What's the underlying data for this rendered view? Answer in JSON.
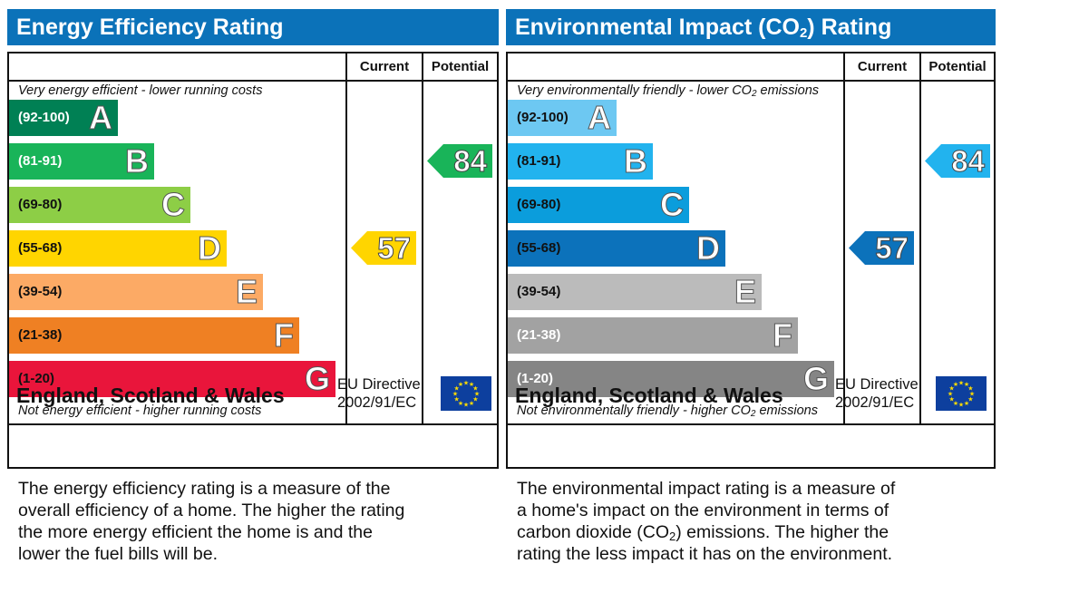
{
  "chart_data": [
    {
      "type": "bar",
      "title": "Energy Efficiency Rating",
      "columns": [
        "Current",
        "Potential"
      ],
      "top_note": "Very energy efficient - lower running costs",
      "bottom_note": "Not energy efficient - higher running costs",
      "bands": [
        {
          "letter": "A",
          "range": "(92-100)",
          "color": "#008054",
          "text_color": "#ffffff"
        },
        {
          "letter": "B",
          "range": "(81-91)",
          "color": "#19b459",
          "text_color": "#ffffff"
        },
        {
          "letter": "C",
          "range": "(69-80)",
          "color": "#8dce46",
          "text_color": "#111111"
        },
        {
          "letter": "D",
          "range": "(55-68)",
          "color": "#ffd500",
          "text_color": "#111111"
        },
        {
          "letter": "E",
          "range": "(39-54)",
          "color": "#fcaa65",
          "text_color": "#111111"
        },
        {
          "letter": "F",
          "range": "(21-38)",
          "color": "#ef8023",
          "text_color": "#111111"
        },
        {
          "letter": "G",
          "range": "(1-20)",
          "color": "#e9153b",
          "text_color": "#111111"
        }
      ],
      "current": {
        "value": 57,
        "band": "D",
        "color": "#ffd500"
      },
      "potential": {
        "value": 84,
        "band": "B",
        "color": "#19b459"
      }
    },
    {
      "type": "bar",
      "title": "Environmental Impact (CO2) Rating",
      "title_main": "Environmental Impact (CO",
      "title_sub": "2",
      "title_end": ") Rating",
      "columns": [
        "Current",
        "Potential"
      ],
      "top_note": "Very environmentally friendly - lower CO2 emissions",
      "top_note_parts": [
        "Very environmentally friendly - lower CO",
        "2",
        " emissions"
      ],
      "bottom_note": "Not environmentally friendly - higher CO2 emissions",
      "bottom_note_parts": [
        "Not environmentally friendly - higher CO",
        "2",
        " emissions"
      ],
      "bands": [
        {
          "letter": "A",
          "range": "(92-100)",
          "color": "#6dc8f2",
          "text_color": "#111111"
        },
        {
          "letter": "B",
          "range": "(81-91)",
          "color": "#22b3ee",
          "text_color": "#111111"
        },
        {
          "letter": "C",
          "range": "(69-80)",
          "color": "#0b9ddc",
          "text_color": "#111111"
        },
        {
          "letter": "D",
          "range": "(55-68)",
          "color": "#0c72bb",
          "text_color": "#111111"
        },
        {
          "letter": "E",
          "range": "(39-54)",
          "color": "#bbbbbb",
          "text_color": "#111111"
        },
        {
          "letter": "F",
          "range": "(21-38)",
          "color": "#a2a2a2",
          "text_color": "#ffffff"
        },
        {
          "letter": "G",
          "range": "(1-20)",
          "color": "#858585",
          "text_color": "#ffffff"
        }
      ],
      "current": {
        "value": 57,
        "band": "D",
        "color": "#0c72bb"
      },
      "potential": {
        "value": 84,
        "band": "B",
        "color": "#22b3ee"
      }
    }
  ],
  "footer": {
    "region": "England, Scotland & Wales",
    "directive_line1": "EU Directive",
    "directive_line2": "2002/91/EC",
    "flag_icon": "eu-flag-icon"
  },
  "descriptions": {
    "energy": [
      "The energy efficiency rating is a measure of the",
      "overall efficiency of a home. The higher the rating",
      "the more energy efficient the home is and the",
      "lower the fuel bills will be."
    ],
    "environment_line1": "The environmental impact rating is a measure of",
    "environment_line2": "a home's impact on the environment in terms of",
    "environment_line3_a": "carbon dioxide (CO",
    "environment_line3_sub": "2",
    "environment_line3_b": ") emissions. The higher the",
    "environment_line4": "rating the less impact it has on the environment."
  },
  "colors": {
    "header_blue": "#0b72b9"
  }
}
